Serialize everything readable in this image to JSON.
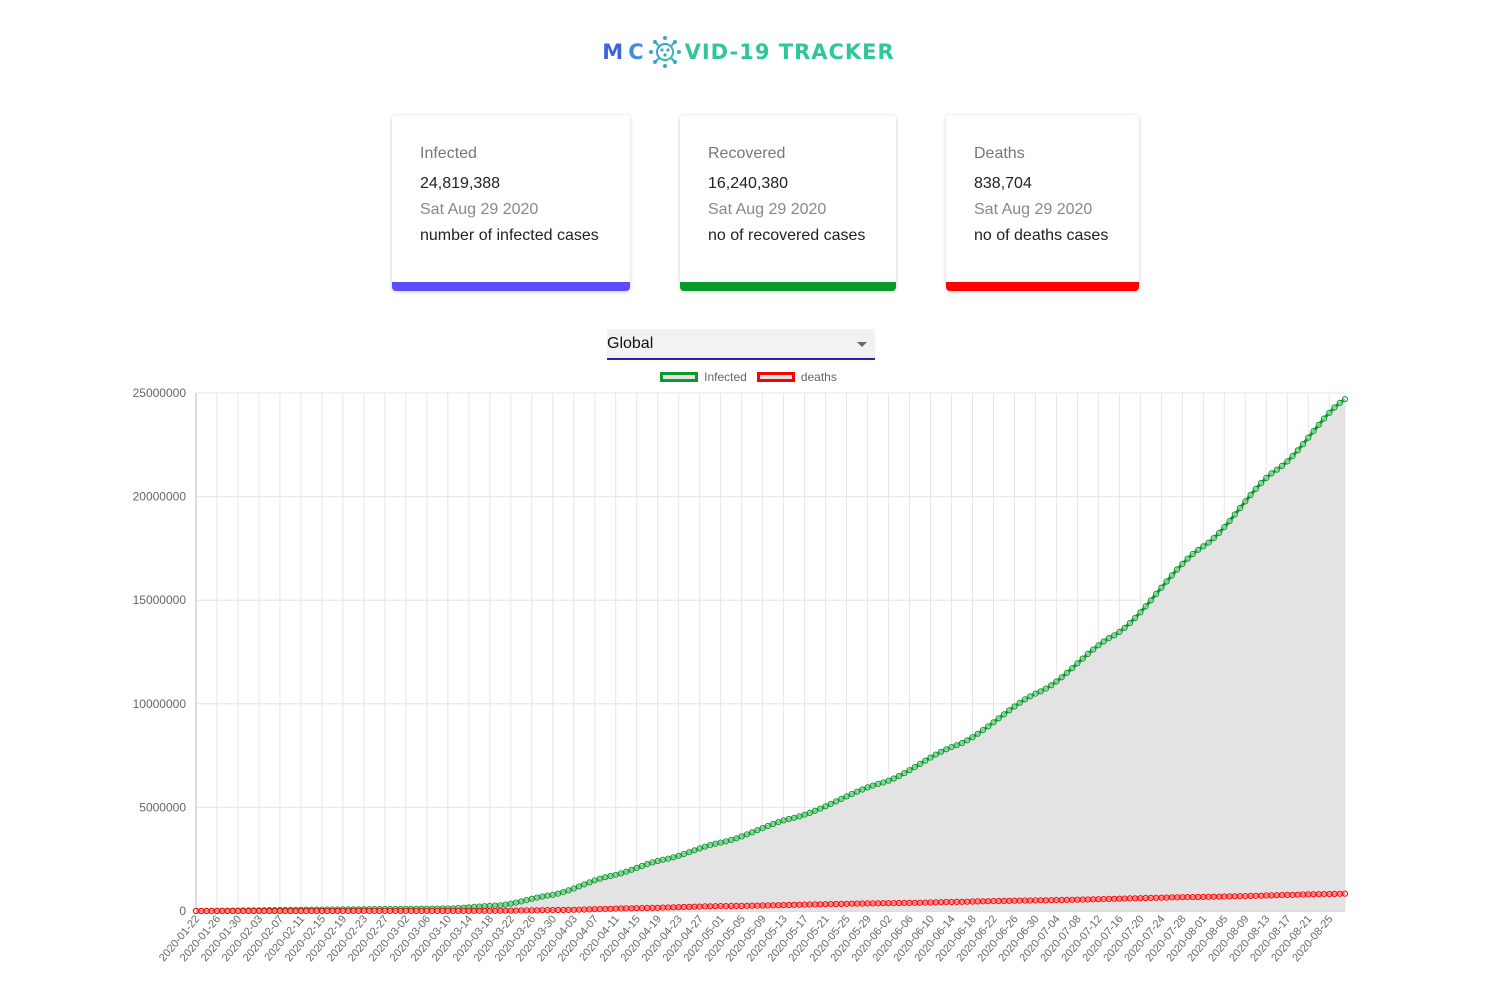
{
  "logo": {
    "part1": "M",
    "part2": "C",
    "part3": "VID-19 TRACKER",
    "icon": "virus-icon"
  },
  "cards": [
    {
      "key": "infected",
      "title": "Infected",
      "value": "24,819,388",
      "date": "Sat Aug 29 2020",
      "desc": "number of infected cases",
      "color": "#5b4ef8"
    },
    {
      "key": "recovered",
      "title": "Recovered",
      "value": "16,240,380",
      "date": "Sat Aug 29 2020",
      "desc": "no of recovered cases",
      "color": "#0a9a2c"
    },
    {
      "key": "deaths",
      "title": "Deaths",
      "value": "838,704",
      "date": "Sat Aug 29 2020",
      "desc": "no of deaths cases",
      "color": "#ff0000"
    }
  ],
  "country_select": {
    "value": "Global"
  },
  "chart_data": {
    "type": "line",
    "x_start": "2020-01-22",
    "x_end": "2020-08-28",
    "x_tick_every_days": 4,
    "ylim": [
      0,
      25000000
    ],
    "y_ticks": [
      "0",
      "5000000",
      "10000000",
      "15000000",
      "20000000",
      "25000000"
    ],
    "grid": true,
    "legend_position": "top",
    "series": [
      {
        "name": "Infected",
        "color": "#0a9a2c",
        "fill": "#e3e3e3",
        "anchors": [
          [
            "2020-01-22",
            555
          ],
          [
            "2020-02-15",
            69000
          ],
          [
            "2020-03-10",
            120000
          ],
          [
            "2020-03-20",
            272000
          ],
          [
            "2020-03-30",
            780000
          ],
          [
            "2020-04-10",
            1690000
          ],
          [
            "2020-04-20",
            2470000
          ],
          [
            "2020-05-01",
            3300000
          ],
          [
            "2020-05-15",
            4500000
          ],
          [
            "2020-06-01",
            6200000
          ],
          [
            "2020-06-15",
            8000000
          ],
          [
            "2020-07-01",
            10600000
          ],
          [
            "2020-07-15",
            13300000
          ],
          [
            "2020-08-01",
            17600000
          ],
          [
            "2020-08-15",
            21300000
          ],
          [
            "2020-08-28",
            24700000
          ]
        ]
      },
      {
        "name": "deaths",
        "color": "#ff0000",
        "fill": "none",
        "anchors": [
          [
            "2020-01-22",
            17
          ],
          [
            "2020-03-10",
            4300
          ],
          [
            "2020-03-20",
            11000
          ],
          [
            "2020-04-01",
            50000
          ],
          [
            "2020-04-15",
            135000
          ],
          [
            "2020-05-01",
            235000
          ],
          [
            "2020-06-01",
            375000
          ],
          [
            "2020-07-01",
            515000
          ],
          [
            "2020-08-01",
            680000
          ],
          [
            "2020-08-28",
            835000
          ]
        ]
      }
    ]
  }
}
